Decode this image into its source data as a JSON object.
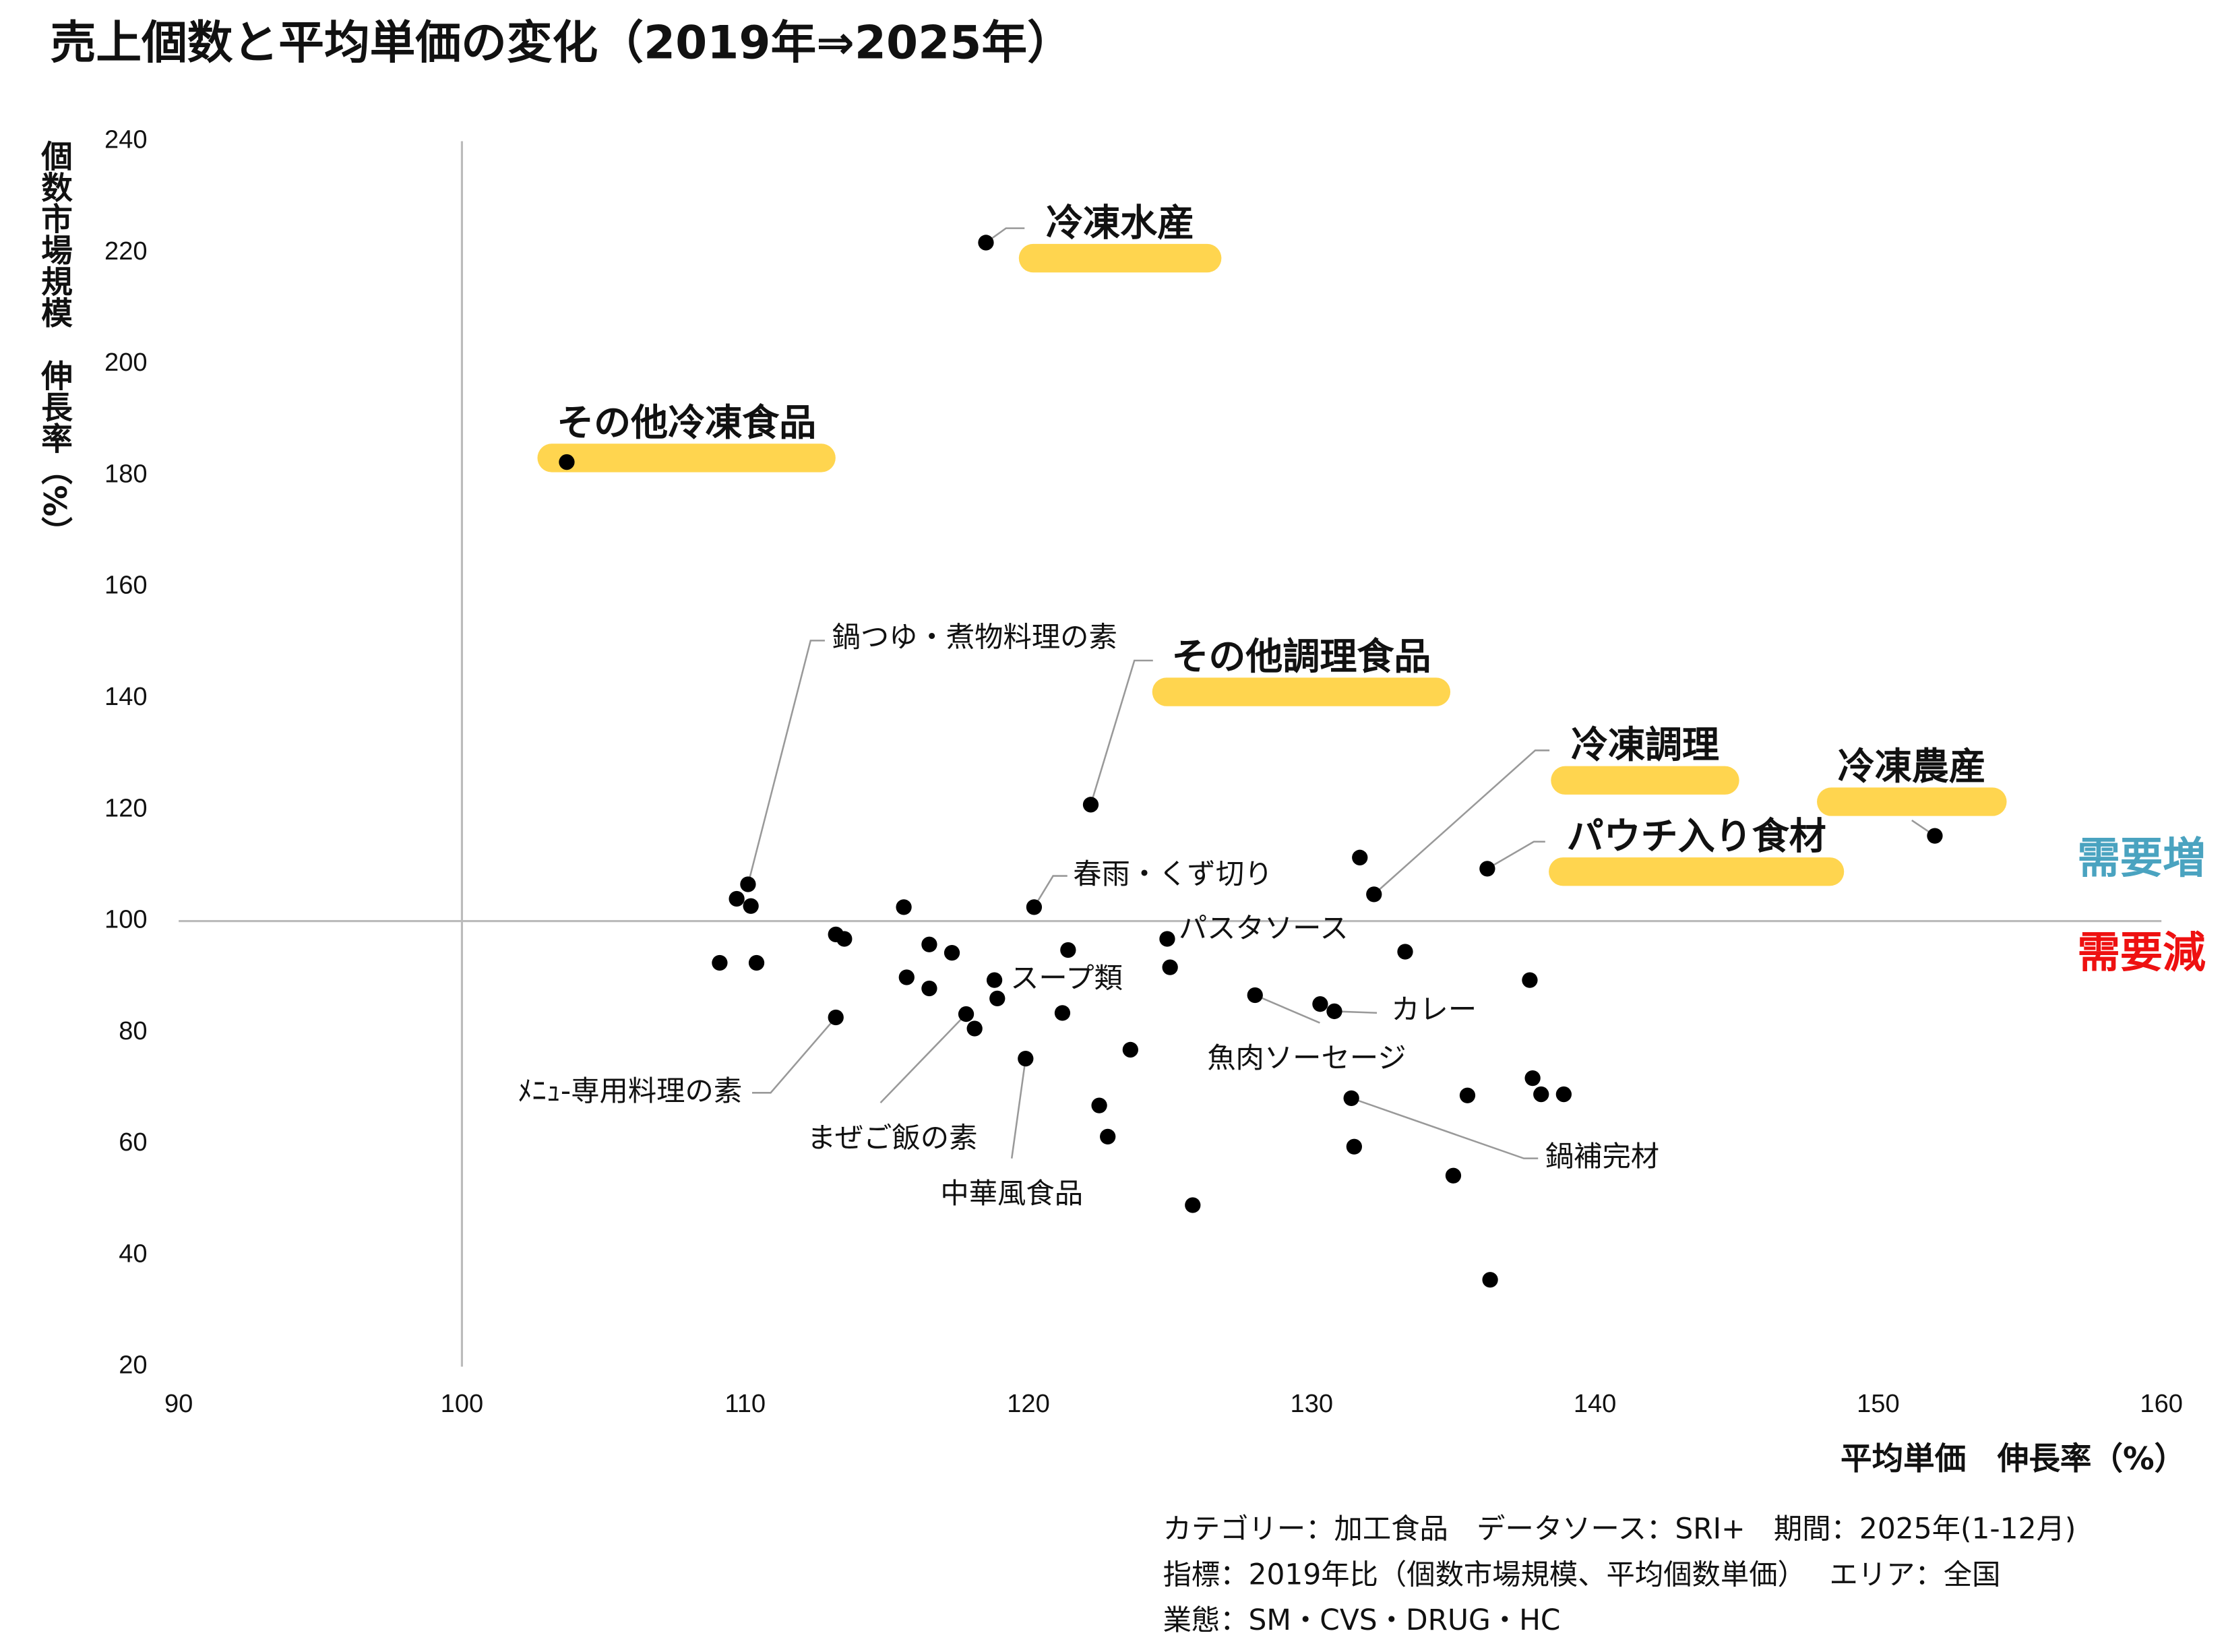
{
  "chart_data": {
    "type": "scatter",
    "title": "売上個数と平均単価の変化（2019年⇒2025年）",
    "xlabel": "平均単価　伸長率（%）",
    "ylabel": "個数市場規模　伸長率（%）",
    "xlim": [
      90,
      160
    ],
    "ylim": [
      20,
      240
    ],
    "xticks": [
      90,
      100,
      110,
      120,
      130,
      140,
      150,
      160
    ],
    "yticks": [
      20,
      40,
      60,
      80,
      100,
      120,
      140,
      160,
      180,
      200,
      220,
      240
    ],
    "crosshair": [
      100,
      100
    ],
    "color": "#000000",
    "highlight_color": "#ffd54f",
    "x": [
      118.5,
      103.7,
      122.2,
      110.1,
      152.0,
      136.2,
      132.2,
      120.2,
      124.9,
      118.8,
      130.8,
      128.0,
      131.4,
      113.2,
      117.8,
      119.9,
      109.7,
      110.2,
      131.7,
      115.6,
      113.2,
      113.5,
      109.1,
      110.4,
      116.5,
      117.3,
      115.7,
      116.5,
      121.4,
      125.0,
      133.3,
      118.9,
      118.1,
      121.2,
      130.3,
      137.7,
      123.6,
      137.8,
      138.1,
      138.9,
      135.5,
      122.5,
      122.8,
      131.5,
      135.0,
      125.8,
      136.3
    ],
    "y": [
      221.8,
      182.4,
      120.9,
      106.6,
      115.3,
      109.4,
      104.8,
      102.5,
      96.8,
      89.4,
      83.8,
      86.7,
      68.2,
      82.7,
      83.3,
      75.3,
      104.0,
      102.7,
      111.4,
      102.5,
      97.6,
      96.8,
      92.5,
      92.5,
      95.8,
      94.3,
      89.9,
      87.9,
      94.8,
      91.7,
      94.5,
      86.1,
      80.7,
      83.5,
      85.1,
      89.4,
      76.9,
      71.8,
      68.9,
      68.9,
      68.7,
      66.9,
      61.3,
      59.5,
      54.3,
      49.0,
      35.6
    ],
    "labels": [
      {
        "text": "冷凍水産",
        "highlight": true
      },
      {
        "text": "その他冷凍食品",
        "highlight": true
      },
      {
        "text": "その他調理食品",
        "highlight": true
      },
      {
        "text": "鍋つゆ・煮物料理の素",
        "highlight": false
      },
      {
        "text": "冷凍農産",
        "highlight": true
      },
      {
        "text": "パウチ入り食材",
        "highlight": true
      },
      {
        "text": "冷凍調理",
        "highlight": true
      },
      {
        "text": "春雨・くず切り",
        "highlight": false
      },
      {
        "text": "パスタソース",
        "highlight": false
      },
      {
        "text": "スープ類",
        "highlight": false
      },
      {
        "text": "カレー",
        "highlight": false
      },
      {
        "text": "魚肉ソーセージ",
        "highlight": false
      },
      {
        "text": "鍋補完材",
        "highlight": false
      },
      {
        "text": "ﾒﾆｭ-専用料理の素",
        "highlight": false
      },
      {
        "text": "まぜご飯の素",
        "highlight": false
      },
      {
        "text": "中華風食品",
        "highlight": false
      },
      null,
      null,
      null,
      null,
      null,
      null,
      null,
      null,
      null,
      null,
      null,
      null,
      null,
      null,
      null,
      null,
      null,
      null,
      null,
      null,
      null,
      null,
      null,
      null,
      null,
      null,
      null,
      null,
      null,
      null,
      null
    ],
    "quadrant_labels": [
      {
        "text": "需要増",
        "color": "#4aa3c0"
      },
      {
        "text": "需要減",
        "color": "#ee1111"
      }
    ],
    "notes": [
      "カテゴリー：加工食品　データソース：SRI+　期間：2025年(1-12月)",
      "指標：2019年比（個数市場規模、平均個数単価）　 エリア：全国",
      "業態：SM・CVS・DRUG・HC"
    ]
  }
}
